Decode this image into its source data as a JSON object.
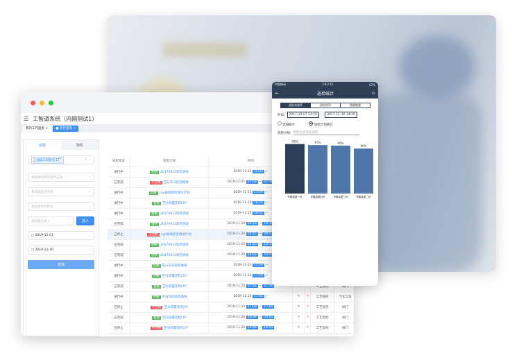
{
  "app": {
    "title": "工智道系统（内网测试1）",
    "tabs": [
      {
        "label": "我的工作面板"
      },
      {
        "label": "巡检查询"
      }
    ]
  },
  "sidebar": {
    "tabs": [
      "巡检",
      "随机"
    ],
    "factory_chip": "上海异工同智化工厂",
    "fields": [
      "请选择有无异常项记录",
      "请选择是否合格",
      "请选择巡检状态"
    ],
    "recorder_placeholder": "请选择记录人",
    "select_button": "选人",
    "date_start": "2019-11-01",
    "date_end": "2019-11-30",
    "query_button": "查询"
  },
  "table": {
    "headers": [
      "巡检状态",
      "巡检计划",
      "时间",
      "填写",
      "",
      "",
      ""
    ],
    "rows": [
      {
        "status": "进行中",
        "result": "合格",
        "plan": "20170915巡检测试",
        "date": "2019-11-21",
        "start": "12:03",
        "end": ""
      },
      {
        "status": "已完成",
        "result": "不合格",
        "plan": "空分车间巡检路线",
        "date": "2019-11-21",
        "start": "11:53",
        "end": "11:58"
      },
      {
        "status": "进行中",
        "result": "合格",
        "plan": "cyp离线巡检测试计划",
        "date": "2019-11-21",
        "start": "11:49",
        "end": ""
      },
      {
        "status": "进行中",
        "result": "合格",
        "plan": "空分装置巡检LPF",
        "date": "2019-11-20",
        "start": "18:52",
        "end": ""
      },
      {
        "status": "进行中",
        "result": "合格",
        "plan": "20170915巡检测试",
        "date": "2019-11-20",
        "start": "18:52",
        "end": ""
      },
      {
        "status": "已完成",
        "result": "合格",
        "plan": "20170915巡检测试",
        "date": "2019-11-20",
        "start": "18:18",
        "end": "18:39"
      },
      {
        "status": "已终止",
        "result": "不合格",
        "plan": "cyp离线巡检测试计划",
        "date": "2019-11-20",
        "start": "18:15",
        "end": "18:17"
      },
      {
        "status": "已完成",
        "result": "合格",
        "plan": "20170915巡检测试",
        "date": "2019-11-20",
        "start": "18:10",
        "end": "18:31"
      },
      {
        "status": "已完成",
        "result": "合格",
        "plan": "20170915巡检测试",
        "date": "2019-11-20",
        "start": "18:02",
        "end": "18:04"
      },
      {
        "status": "进行中",
        "result": "合格",
        "plan": "空分车间巡检路线",
        "date": "2019-11-20",
        "start": "17:59",
        "end": ""
      },
      {
        "status": "进行中",
        "result": "合格",
        "plan": "空分装置巡检CSY",
        "date": "2019-11-20",
        "start": "17:59",
        "end": ""
      },
      {
        "status": "已完成",
        "result": "合格",
        "plan": "空分装置巡检LPF",
        "date": "2019-11-20",
        "start": "17:55",
        "end": "17:56",
        "type": "工艺巡检",
        "area": "阀门"
      },
      {
        "status": "进行中",
        "result": "合格",
        "plan": "空分车间巡检路线",
        "date": "2019-11-20",
        "start": "17:01",
        "end": "",
        "type": "工艺巡检",
        "area": "气化工段"
      },
      {
        "status": "已终止",
        "result": "不合格",
        "plan": "空分装置巡检LPF",
        "date": "2019-11-20",
        "start": "17:03",
        "end": "17:04",
        "type": "工艺巡检",
        "area": "阀门"
      },
      {
        "status": "已完成",
        "result": "合格",
        "plan": "空分装置巡检LPF",
        "date": "2019-11-20",
        "start": "16:38",
        "end": "16:41",
        "type": "工艺巡检",
        "area": "阀门"
      },
      {
        "status": "已终止",
        "result": "不合格",
        "plan": "空分装置巡检LPF",
        "date": "2019-11-20",
        "start": "16:48",
        "end": "16:55",
        "type": "工艺巡检",
        "area": "阀门"
      }
    ]
  },
  "phone": {
    "carrier": "中国移动",
    "clock": "下午2:11",
    "battery": "67%",
    "title": "巡检统计",
    "segments": [
      "巡检合格率",
      "巡检时间",
      "隐患数量"
    ],
    "time_label": "时间:",
    "date_from": "2017-10-07 14:10",
    "date_to": "2017-11-10 14:10",
    "radio_area": "区域统计",
    "radio_plan": "巡检计划统计",
    "plan_label": "巡检计划:",
    "plan_placeholder": "甲醇合成岗位巡检"
  },
  "chart_data": {
    "type": "bar",
    "categories": [
      "甲醇装置一班",
      "甲醇装置四班",
      "甲醇装置三班",
      "甲醇装置二班"
    ],
    "values": [
      99,
      97,
      96,
      90
    ],
    "value_labels": [
      "99%",
      "97%",
      "96%",
      "90%"
    ],
    "ylim": [
      0,
      100
    ],
    "colors": [
      "#2c3e57",
      "#4f76a8",
      "#4f76a8",
      "#4f76a8"
    ],
    "grid": true
  }
}
